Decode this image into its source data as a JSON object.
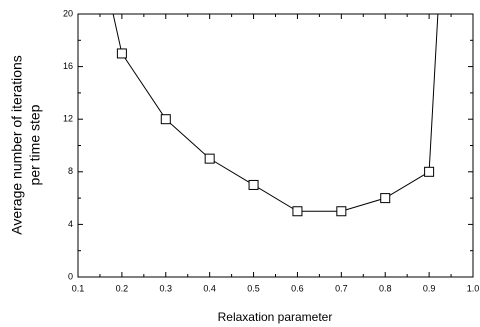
{
  "chart_data": {
    "type": "line",
    "xlabel": "Relaxation parameter",
    "ylabel": [
      "Average number of iterations",
      "per time step"
    ],
    "x": [
      0.18,
      0.2,
      0.3,
      0.4,
      0.5,
      0.6,
      0.7,
      0.8,
      0.9,
      0.92
    ],
    "series": [
      {
        "color": "#000000",
        "values": [
          20,
          17,
          12,
          9,
          7,
          5,
          5,
          6,
          8,
          20
        ],
        "markers": [
          false,
          true,
          true,
          true,
          true,
          true,
          true,
          true,
          true,
          false
        ]
      }
    ],
    "xlim": [
      0.1,
      1
    ],
    "xticks": [
      0.1,
      0.2,
      0.3,
      0.4,
      0.5,
      0.6,
      0.7,
      0.8,
      0.9,
      {
        "value": 1,
        "label": "1.0"
      }
    ],
    "ylim": [
      0,
      20
    ],
    "yticks": [
      0,
      4,
      8,
      12,
      16,
      20
    ],
    "grid": false
  }
}
